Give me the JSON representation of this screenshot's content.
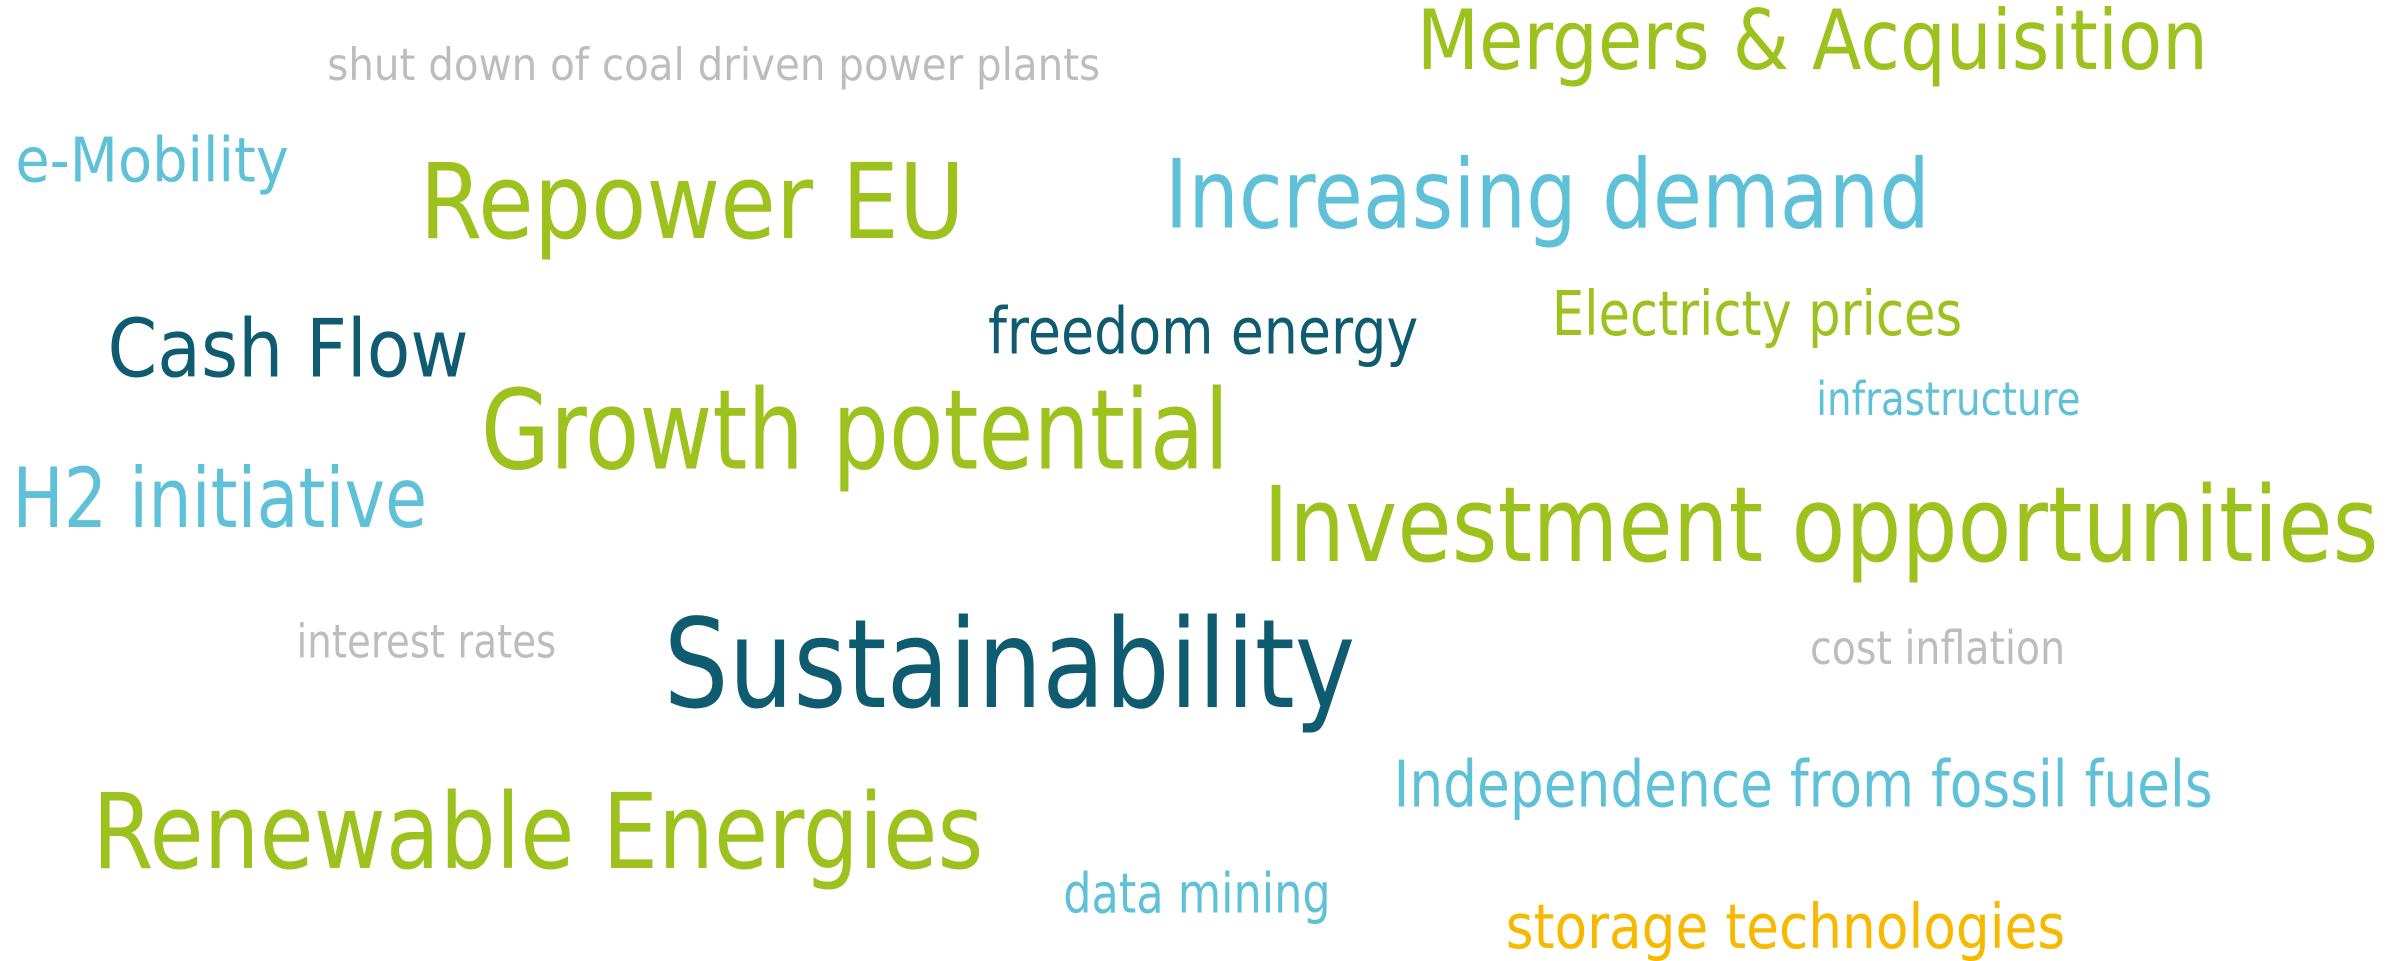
{
  "words": [
    "shut down of coal driven power plants",
    "Mergers & Acquisition",
    "e-Mobility",
    "Repower EU",
    "Increasing demand",
    "Cash Flow",
    "freedom energy",
    "Electricty prices",
    "infrastructure",
    "Growth potential",
    "H2 initiative",
    "Investment opportunities",
    "interest rates",
    "Sustainability",
    "cost inflation",
    "Independence from fossil fuels",
    "Renewable Energies",
    "data mining",
    "storage technologies"
  ]
}
